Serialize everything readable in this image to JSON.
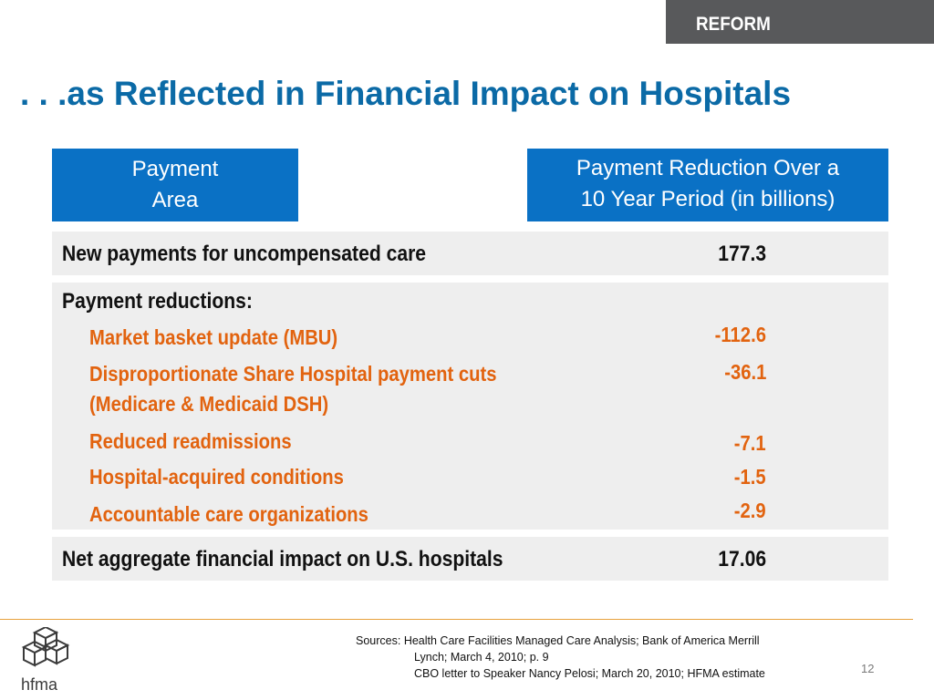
{
  "section_tab": "REFORM",
  "title": ". . .as Reflected in Financial Impact on Hospitals",
  "table": {
    "header_left": [
      "Payment",
      "Area"
    ],
    "header_right": [
      "Payment Reduction Over a",
      "10 Year Period (in billions)"
    ],
    "row_new": {
      "label": "New payments for uncompensated care",
      "value": "177.3"
    },
    "reductions": {
      "heading": "Payment reductions:",
      "items": [
        {
          "label": "Market basket update (MBU)",
          "value": "-112.6"
        },
        {
          "label": "Disproportionate Share Hospital payment cuts",
          "label2": "(Medicare & Medicaid DSH)",
          "value": "-36.1"
        },
        {
          "label": "Reduced readmissions",
          "value": "-7.1"
        },
        {
          "label": "Hospital-acquired conditions",
          "value": "-1.5"
        },
        {
          "label": "Accountable care organizations",
          "value": "-2.9"
        }
      ]
    },
    "row_net": {
      "label": "Net aggregate financial impact on U.S. hospitals",
      "value": "17.06"
    }
  },
  "footer": {
    "logo_text": "hfma",
    "sources_prefix": "Sources:",
    "sources_line1": "Health Care Facilities Managed Care Analysis; Bank of America Merrill",
    "sources_line2": "Lynch; March 4, 2010; p. 9",
    "sources_line3": "CBO letter to Speaker Nancy Pelosi; March 20, 2010; HFMA estimate",
    "page_number": "12"
  },
  "colors": {
    "title": "#0b6aa6",
    "header_bg": "#0a71c5",
    "accent_orange": "#e2630f",
    "tab_bg": "#58595b",
    "row_bg": "#eeeeee"
  }
}
